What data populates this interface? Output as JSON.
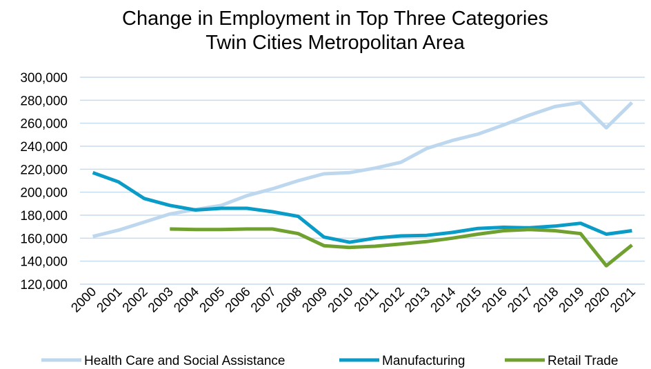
{
  "chart_data": {
    "type": "line",
    "title": [
      "Change in Employment in Top Three Categories",
      "Twin Cities Metropolitan Area"
    ],
    "xlabel": "",
    "ylabel": "",
    "ylim": [
      120000,
      300000
    ],
    "ytick_step": 20000,
    "ytick_labels": [
      "120,000",
      "140,000",
      "160,000",
      "180,000",
      "200,000",
      "220,000",
      "240,000",
      "260,000",
      "280,000",
      "300,000"
    ],
    "grid": true,
    "legend_position": "bottom",
    "x": [
      "2000",
      "2001",
      "2002",
      "2003",
      "2004",
      "2005",
      "2006",
      "2007",
      "2008",
      "2009",
      "2010",
      "2011",
      "2012",
      "2013",
      "2014",
      "2015",
      "2016",
      "2017",
      "2018",
      "2019",
      "2020",
      "2021"
    ],
    "series": [
      {
        "name": "Health Care and Social Assistance",
        "color": "#bdd7ee",
        "values": [
          161500,
          167000,
          174000,
          181000,
          185000,
          188500,
          197000,
          203000,
          210000,
          216000,
          217000,
          221000,
          226000,
          238000,
          245000,
          250500,
          258500,
          267000,
          274500,
          278000,
          256000,
          278000
        ]
      },
      {
        "name": "Manufacturing",
        "color": "#0a9bc7",
        "values": [
          217000,
          209000,
          194500,
          188500,
          184500,
          186000,
          186000,
          183000,
          179000,
          161000,
          156500,
          160000,
          162000,
          162500,
          165000,
          168500,
          169500,
          169000,
          170500,
          173000,
          163500,
          166500
        ]
      },
      {
        "name": "Retail Trade",
        "color": "#70a030",
        "values": [
          null,
          null,
          null,
          168000,
          167500,
          167500,
          168000,
          168000,
          164000,
          153500,
          152000,
          153000,
          155000,
          157000,
          160000,
          163500,
          166500,
          167500,
          166500,
          164000,
          136000,
          154000
        ]
      }
    ]
  }
}
